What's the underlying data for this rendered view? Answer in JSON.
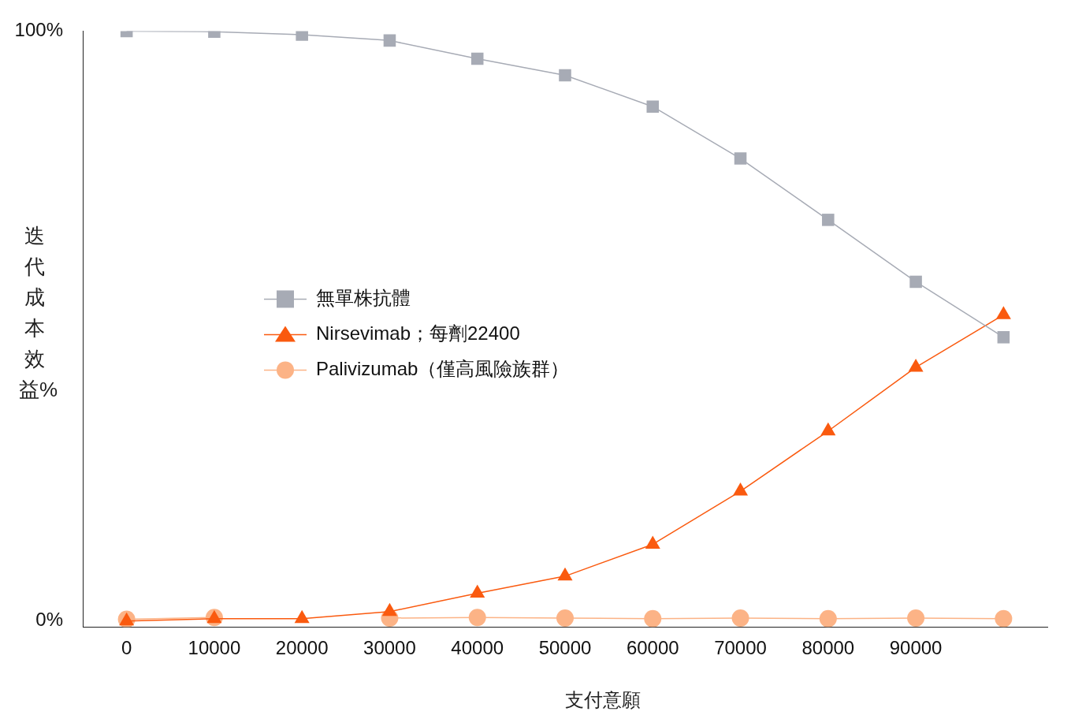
{
  "chart_data": {
    "type": "line",
    "xlabel": "支付意願",
    "ylabel": "迭代成本效益%",
    "categories": [
      "0",
      "10000",
      "20000",
      "30000",
      "40000",
      "50000",
      "60000",
      "70000",
      "80000",
      "90000",
      null
    ],
    "ylim": [
      -1,
      100
    ],
    "yticks": [
      {
        "value": 0,
        "label": "0%"
      },
      {
        "value": 100,
        "label": "100%"
      }
    ],
    "grid": false,
    "legend": "center",
    "series": [
      {
        "name": "無單株抗體",
        "color": "#a7abb5",
        "marker": "square",
        "values": [
          100,
          99.9,
          99.4,
          98.4,
          95.3,
          92.5,
          87.2,
          78.4,
          68,
          57.5,
          48.1
        ]
      },
      {
        "name": "Nirsevimab；每劑22400",
        "color": "#fa5a0f",
        "marker": "triangle",
        "values": [
          0,
          0.4,
          0.4,
          1.6,
          4.7,
          7.6,
          13,
          22,
          32.2,
          43,
          51.9
        ]
      },
      {
        "name": "Palivizumab（僅高風險族群）",
        "color": "#fcb386",
        "marker": "circle",
        "values": [
          0.3,
          0.6,
          null,
          0.5,
          0.6,
          0.5,
          0.4,
          0.5,
          0.4,
          0.5,
          0.4
        ]
      }
    ]
  }
}
